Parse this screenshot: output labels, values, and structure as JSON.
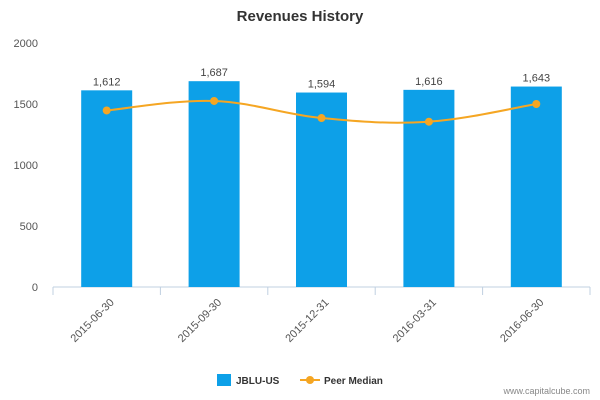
{
  "chart_data": {
    "type": "bar",
    "title": "Revenues History",
    "xlabel": "",
    "ylabel": "",
    "categories": [
      "2015-06-30",
      "2015-09-30",
      "2015-12-31",
      "2016-03-31",
      "2016-06-30"
    ],
    "series": [
      {
        "name": "JBLU-US",
        "type": "bar",
        "color": "#0da0e8",
        "values": [
          1612,
          1687,
          1594,
          1616,
          1643
        ],
        "labels": [
          "1,612",
          "1,687",
          "1,594",
          "1,616",
          "1,643"
        ]
      },
      {
        "name": "Peer Median",
        "type": "line",
        "color": "#f5a623",
        "values": [
          1447,
          1525,
          1385,
          1355,
          1500
        ]
      }
    ],
    "ylim": [
      0,
      2000
    ],
    "yticks": [
      0,
      500,
      1000,
      1500,
      2000
    ],
    "grid": false,
    "legend_position": "bottom-center"
  },
  "watermark": "www.capitalcube.com"
}
